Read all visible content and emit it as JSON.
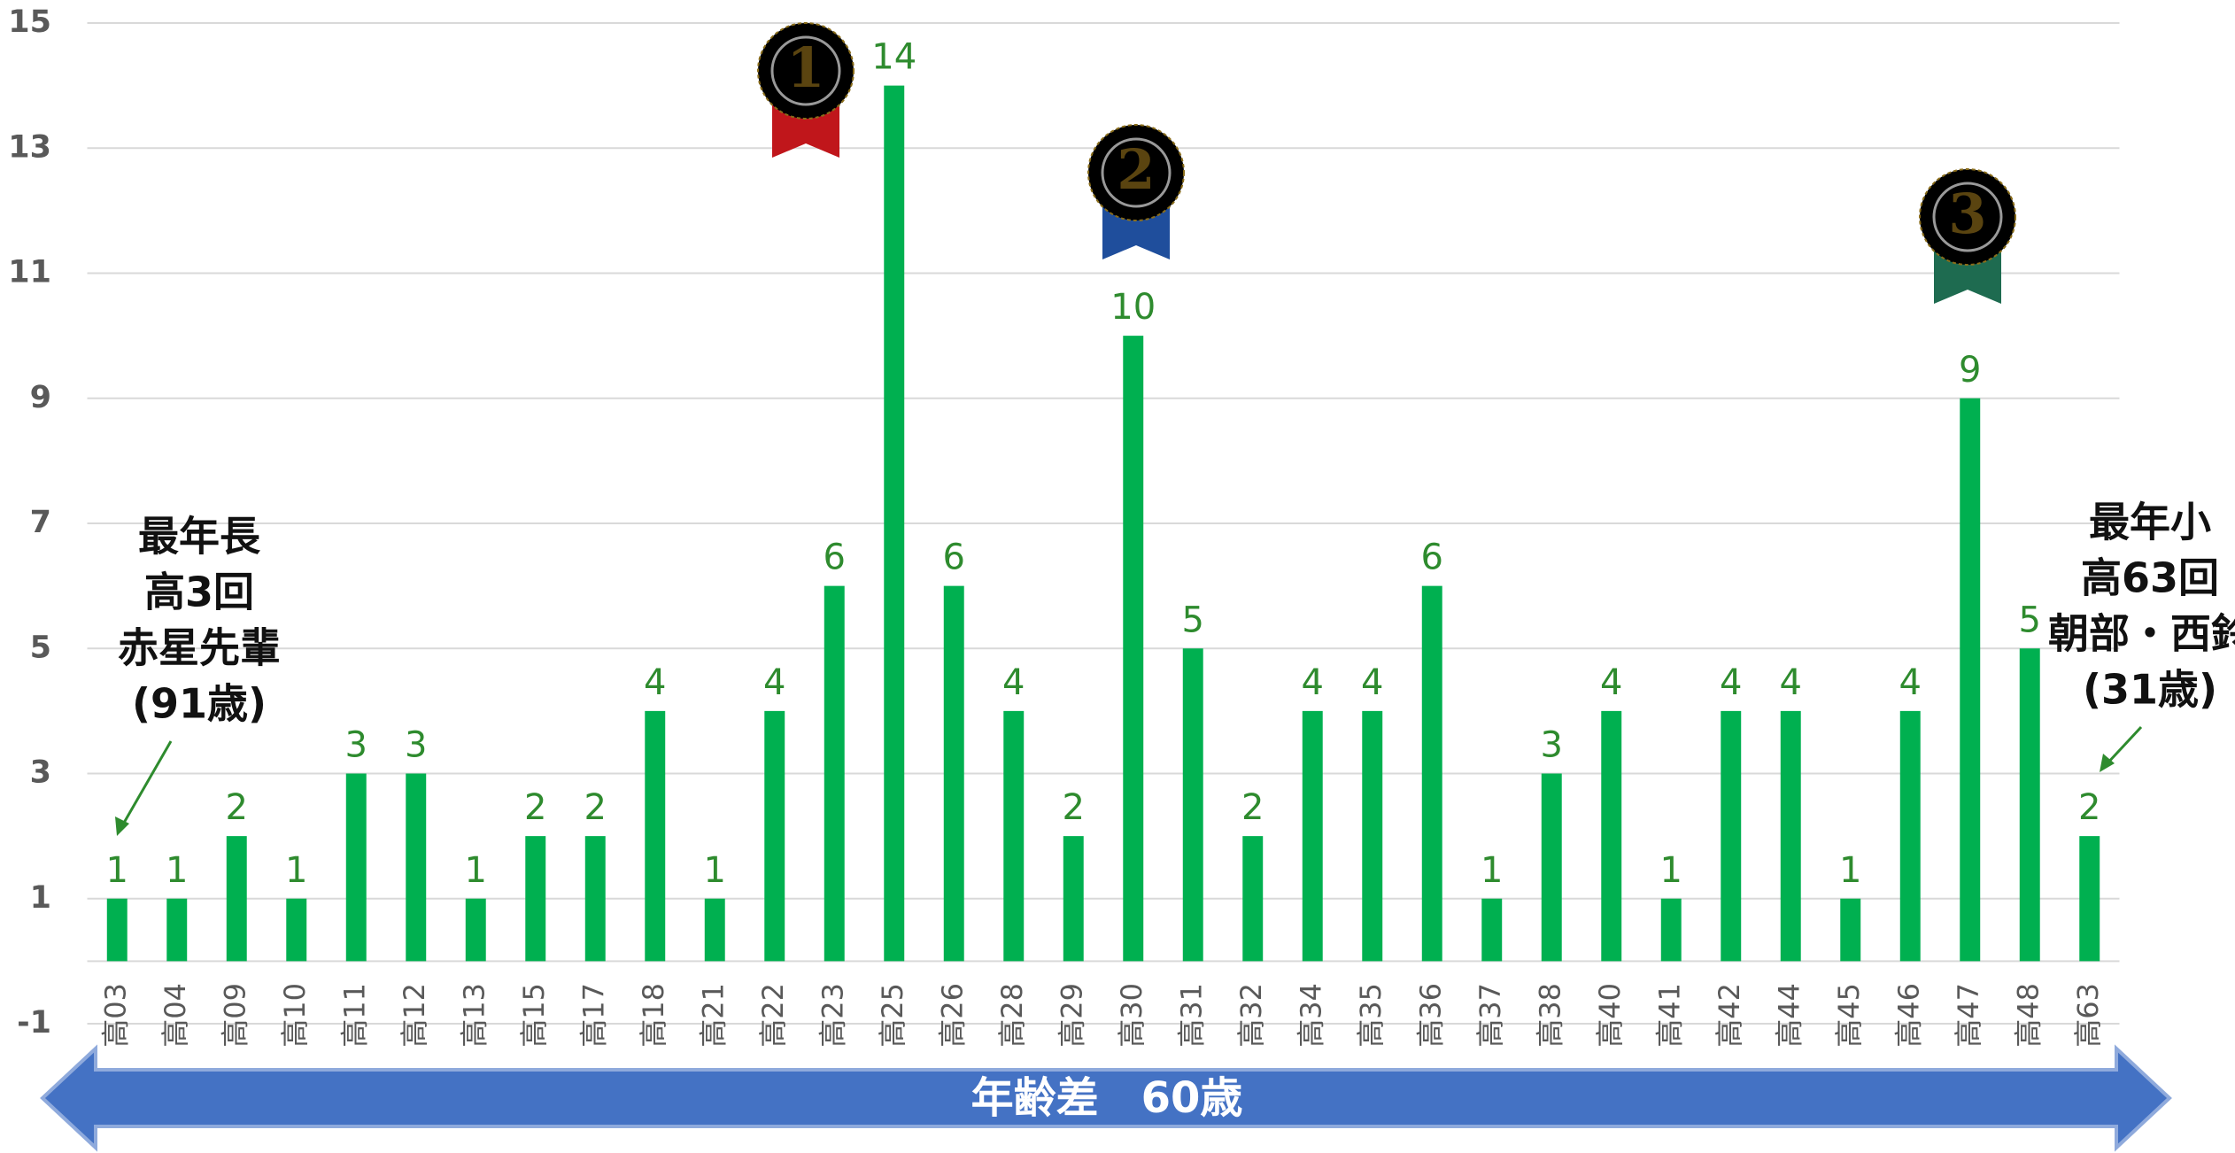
{
  "chart_data": {
    "type": "bar",
    "categories": [
      "高03",
      "高04",
      "高09",
      "高10",
      "高11",
      "高12",
      "高13",
      "高15",
      "高17",
      "高18",
      "高21",
      "高22",
      "高23",
      "高25",
      "高26",
      "高28",
      "高29",
      "高30",
      "高31",
      "高32",
      "高34",
      "高35",
      "高36",
      "高37",
      "高38",
      "高40",
      "高41",
      "高42",
      "高44",
      "高45",
      "高46",
      "高47",
      "高48",
      "高63"
    ],
    "values": [
      1,
      1,
      2,
      1,
      3,
      3,
      1,
      2,
      2,
      4,
      1,
      4,
      6,
      14,
      6,
      4,
      2,
      10,
      5,
      2,
      4,
      4,
      6,
      1,
      3,
      4,
      1,
      4,
      4,
      1,
      4,
      9,
      5,
      2
    ],
    "color": "#00b050",
    "ylim": [
      -1,
      15
    ],
    "yticks": [
      -1,
      1,
      3,
      5,
      7,
      9,
      11,
      13,
      15
    ],
    "grid": true,
    "medals": [
      "1",
      "2",
      "3"
    ],
    "annotations": [
      {
        "lines": [
          "最年長",
          "高3回",
          "赤星先輩",
          "(91歳)"
        ]
      },
      {
        "lines": [
          "最年小",
          "高63回",
          "朝部・西鈴",
          "(31歳)"
        ]
      }
    ],
    "span_label": "年齢差　60歳"
  }
}
